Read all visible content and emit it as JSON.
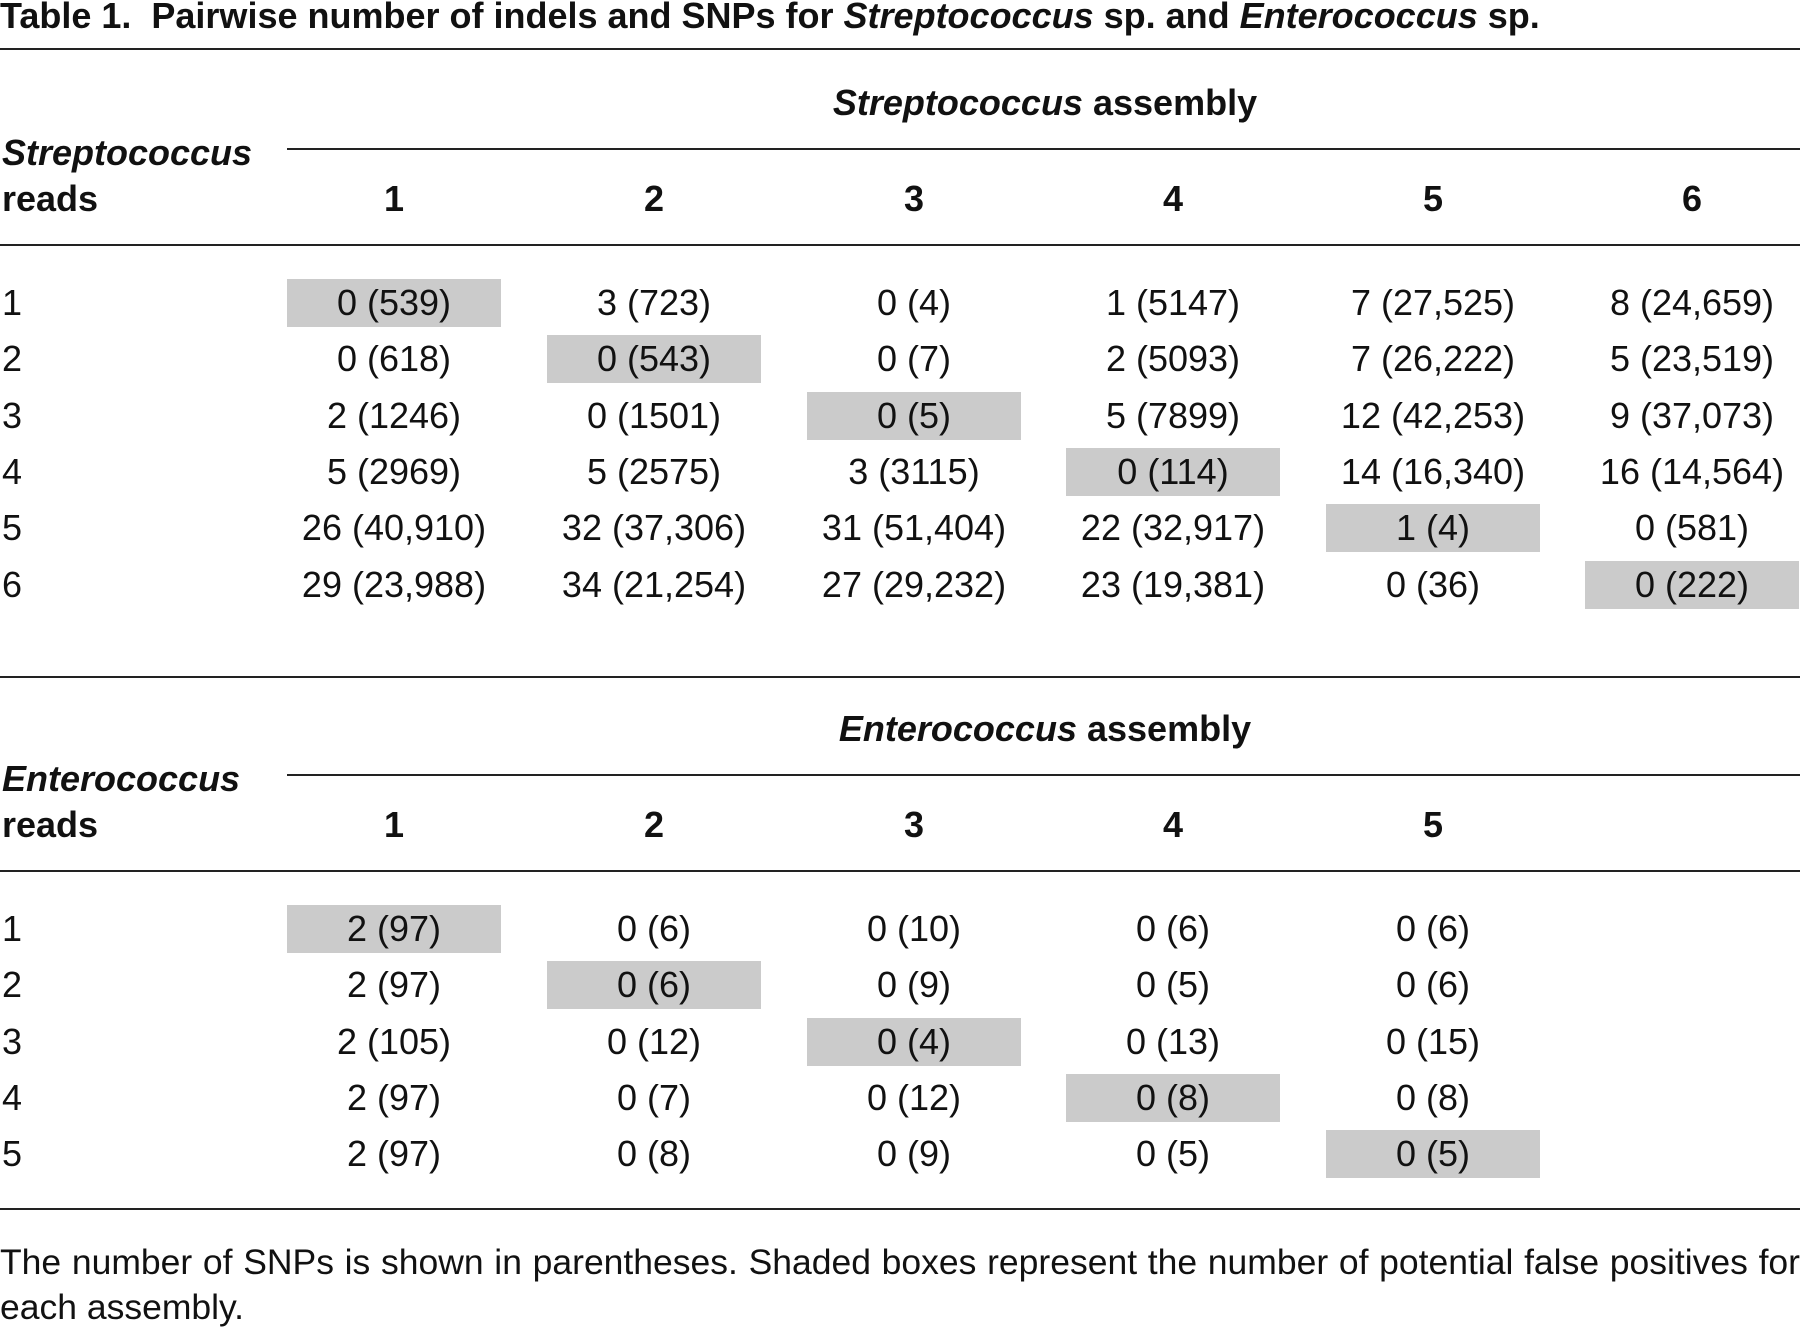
{
  "title": [
    {
      "text": "Table 1.",
      "bold": true,
      "italic": false
    },
    {
      "text": "Pairwise number of indels and SNPs for ",
      "bold": true,
      "italic": false
    },
    {
      "text": "Streptococcus",
      "bold": true,
      "italic": true
    },
    {
      "text": " sp. and ",
      "bold": true,
      "italic": false
    },
    {
      "text": "Enterococcus",
      "bold": true,
      "italic": true
    },
    {
      "text": " sp.",
      "bold": true,
      "italic": false
    }
  ],
  "tables": [
    {
      "group_header": {
        "genus": "Streptococcus",
        "rest": "assembly"
      },
      "stub_header": {
        "genus": "Streptococcus",
        "rest": "reads"
      },
      "columns": [
        "1",
        "2",
        "3",
        "4",
        "5",
        "6"
      ],
      "rows": [
        {
          "label": "1",
          "cells": [
            "0 (539)",
            "3 (723)",
            "0 (4)",
            "1 (5147)",
            "7 (27,525)",
            "8 (24,659)"
          ]
        },
        {
          "label": "2",
          "cells": [
            "0 (618)",
            "0 (543)",
            "0 (7)",
            "2 (5093)",
            "7 (26,222)",
            "5 (23,519)"
          ]
        },
        {
          "label": "3",
          "cells": [
            "2 (1246)",
            "0 (1501)",
            "0 (5)",
            "5 (7899)",
            "12 (42,253)",
            "9 (37,073)"
          ]
        },
        {
          "label": "4",
          "cells": [
            "5 (2969)",
            "5 (2575)",
            "3 (3115)",
            "0 (114)",
            "14 (16,340)",
            "16 (14,564)"
          ]
        },
        {
          "label": "5",
          "cells": [
            "26 (40,910)",
            "32 (37,306)",
            "31 (51,404)",
            "22 (32,917)",
            "1 (4)",
            "0 (581)"
          ]
        },
        {
          "label": "6",
          "cells": [
            "29 (23,988)",
            "34 (21,254)",
            "27 (29,232)",
            "23 (19,381)",
            "0 (36)",
            "0 (222)"
          ]
        }
      ]
    },
    {
      "group_header": {
        "genus": "Enterococcus",
        "rest": "assembly"
      },
      "stub_header": {
        "genus": "Enterococcus",
        "rest": "reads"
      },
      "columns": [
        "1",
        "2",
        "3",
        "4",
        "5"
      ],
      "rows": [
        {
          "label": "1",
          "cells": [
            "2 (97)",
            "0 (6)",
            "0 (10)",
            "0 (6)",
            "0 (6)"
          ]
        },
        {
          "label": "2",
          "cells": [
            "2 (97)",
            "0 (6)",
            "0 (9)",
            "0 (5)",
            "0 (6)"
          ]
        },
        {
          "label": "3",
          "cells": [
            "2 (105)",
            "0 (12)",
            "0 (4)",
            "0 (13)",
            "0 (15)"
          ]
        },
        {
          "label": "4",
          "cells": [
            "2 (97)",
            "0 (7)",
            "0 (12)",
            "0 (8)",
            "0 (8)"
          ]
        },
        {
          "label": "5",
          "cells": [
            "2 (97)",
            "0 (8)",
            "0 (9)",
            "0 (5)",
            "0 (5)"
          ]
        }
      ]
    }
  ],
  "footnote": "The number of SNPs is shown in parentheses. Shaded boxes represent the number of potential false positives for each assembly."
}
